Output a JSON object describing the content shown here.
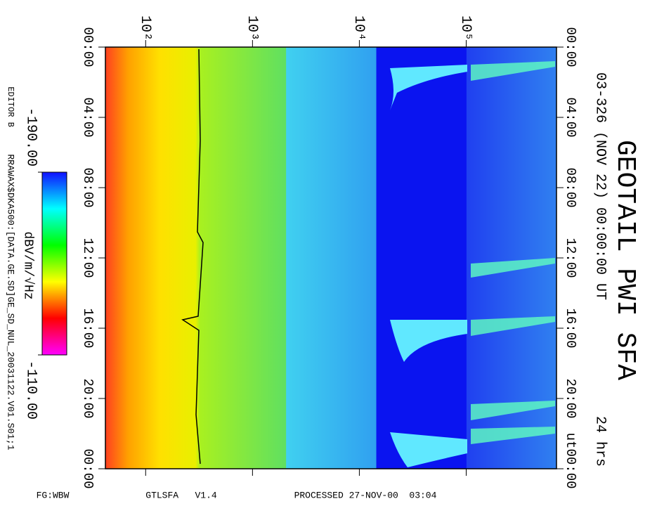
{
  "chart_data": {
    "type": "spectrogram",
    "title": "GEOTAIL PWI SFA",
    "subtitle": "03-326 (NOV 22) 00:00:00 UT",
    "duration": "24 hrs",
    "xscale": "log",
    "xlim": [
      42,
      700000
    ],
    "xticks": [
      {
        "value": 100,
        "label": "10²"
      },
      {
        "value": 1000,
        "label": "10³"
      },
      {
        "value": 10000,
        "label": "10⁴"
      },
      {
        "value": 100000,
        "label": "10⁵"
      }
    ],
    "ylim": [
      0,
      24
    ],
    "yticks": [
      {
        "value": 0,
        "label": "00:00"
      },
      {
        "value": 4,
        "label": "04:00"
      },
      {
        "value": 8,
        "label": "08:00"
      },
      {
        "value": 12,
        "label": "12:00"
      },
      {
        "value": 16,
        "label": "16:00"
      },
      {
        "value": 20,
        "label": "20:00"
      },
      {
        "value": 24,
        "label": "00:00"
      }
    ],
    "time_unit": "ut",
    "colorbar": {
      "label": "dBV/m/√Hz",
      "lim": [
        {
          "value": -190,
          "label": "-190.00"
        },
        {
          "value": -110,
          "label": "-110.00"
        }
      ],
      "colors": [
        "#1010ff",
        "#00ffff",
        "#00ff00",
        "#ffff00",
        "#ff0000",
        "#ff00ff"
      ]
    },
    "editor": "EDITOR B",
    "file": "RRAWAX$DKA500:[DATA.GE.SD]GE_SD_NUL_20031122.V01.S01;1",
    "footer": [
      "FG:WBW",
      "GTLSFA   V1.4",
      "PROCESSED 27-NOV-00  03:04"
    ]
  }
}
